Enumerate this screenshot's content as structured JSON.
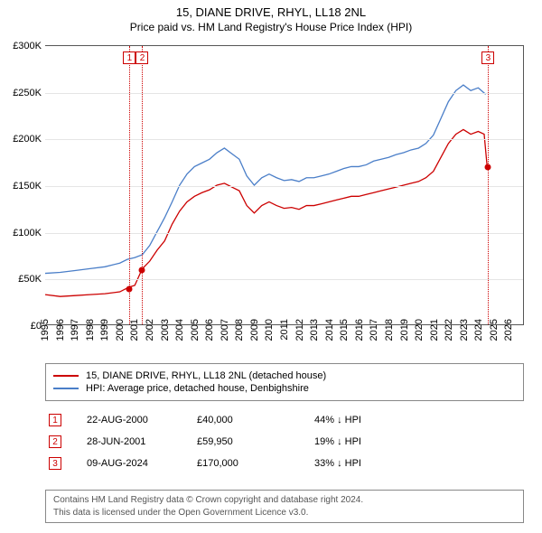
{
  "title": "15, DIANE DRIVE, RHYL, LL18 2NL",
  "subtitle": "Price paid vs. HM Land Registry's House Price Index (HPI)",
  "chart": {
    "type": "line",
    "background_color": "#ffffff",
    "grid_color": "#e5e5e5",
    "axis_color": "#555555",
    "x_min": 1995,
    "x_max": 2027,
    "y_min": 0,
    "y_max": 300000,
    "y_ticks": [
      0,
      50000,
      100000,
      150000,
      200000,
      250000,
      300000
    ],
    "y_tick_labels": [
      "£0",
      "£50K",
      "£100K",
      "£150K",
      "£200K",
      "£250K",
      "£300K"
    ],
    "x_ticks": [
      1995,
      1996,
      1997,
      1998,
      1999,
      2000,
      2001,
      2002,
      2003,
      2004,
      2005,
      2006,
      2007,
      2008,
      2009,
      2010,
      2011,
      2012,
      2013,
      2014,
      2015,
      2016,
      2017,
      2018,
      2019,
      2020,
      2021,
      2022,
      2023,
      2024,
      2025,
      2026
    ],
    "label_fontsize": 11,
    "series": [
      {
        "name": "property",
        "color": "#cc0000",
        "width": 1.3,
        "data": [
          [
            1995,
            32000
          ],
          [
            1996,
            30000
          ],
          [
            1997,
            31000
          ],
          [
            1998,
            32000
          ],
          [
            1999,
            33000
          ],
          [
            2000,
            35000
          ],
          [
            2000.6,
            40000
          ],
          [
            2001.0,
            42000
          ],
          [
            2001.5,
            59950
          ],
          [
            2002,
            68000
          ],
          [
            2002.5,
            80000
          ],
          [
            2003,
            90000
          ],
          [
            2003.5,
            108000
          ],
          [
            2004,
            122000
          ],
          [
            2004.5,
            132000
          ],
          [
            2005,
            138000
          ],
          [
            2005.5,
            142000
          ],
          [
            2006,
            145000
          ],
          [
            2006.5,
            150000
          ],
          [
            2007,
            152000
          ],
          [
            2007.5,
            148000
          ],
          [
            2008,
            144000
          ],
          [
            2008.5,
            128000
          ],
          [
            2009,
            120000
          ],
          [
            2009.5,
            128000
          ],
          [
            2010,
            132000
          ],
          [
            2010.5,
            128000
          ],
          [
            2011,
            125000
          ],
          [
            2011.5,
            126000
          ],
          [
            2012,
            124000
          ],
          [
            2012.5,
            128000
          ],
          [
            2013,
            128000
          ],
          [
            2013.5,
            130000
          ],
          [
            2014,
            132000
          ],
          [
            2014.5,
            134000
          ],
          [
            2015,
            136000
          ],
          [
            2015.5,
            138000
          ],
          [
            2016,
            138000
          ],
          [
            2016.5,
            140000
          ],
          [
            2017,
            142000
          ],
          [
            2017.5,
            144000
          ],
          [
            2018,
            146000
          ],
          [
            2018.5,
            148000
          ],
          [
            2019,
            150000
          ],
          [
            2019.5,
            152000
          ],
          [
            2020,
            154000
          ],
          [
            2020.5,
            158000
          ],
          [
            2021,
            165000
          ],
          [
            2021.5,
            180000
          ],
          [
            2022,
            195000
          ],
          [
            2022.5,
            205000
          ],
          [
            2023,
            210000
          ],
          [
            2023.5,
            205000
          ],
          [
            2024,
            208000
          ],
          [
            2024.4,
            205000
          ],
          [
            2024.6,
            170000
          ]
        ]
      },
      {
        "name": "hpi",
        "color": "#4a7ec8",
        "width": 1.3,
        "data": [
          [
            1995,
            55000
          ],
          [
            1996,
            56000
          ],
          [
            1997,
            58000
          ],
          [
            1998,
            60000
          ],
          [
            1999,
            62000
          ],
          [
            2000,
            66000
          ],
          [
            2000.5,
            70000
          ],
          [
            2001,
            72000
          ],
          [
            2001.5,
            75000
          ],
          [
            2002,
            85000
          ],
          [
            2002.5,
            100000
          ],
          [
            2003,
            115000
          ],
          [
            2003.5,
            132000
          ],
          [
            2004,
            150000
          ],
          [
            2004.5,
            162000
          ],
          [
            2005,
            170000
          ],
          [
            2005.5,
            174000
          ],
          [
            2006,
            178000
          ],
          [
            2006.5,
            185000
          ],
          [
            2007,
            190000
          ],
          [
            2007.5,
            184000
          ],
          [
            2008,
            178000
          ],
          [
            2008.5,
            160000
          ],
          [
            2009,
            150000
          ],
          [
            2009.5,
            158000
          ],
          [
            2010,
            162000
          ],
          [
            2010.5,
            158000
          ],
          [
            2011,
            155000
          ],
          [
            2011.5,
            156000
          ],
          [
            2012,
            154000
          ],
          [
            2012.5,
            158000
          ],
          [
            2013,
            158000
          ],
          [
            2013.5,
            160000
          ],
          [
            2014,
            162000
          ],
          [
            2014.5,
            165000
          ],
          [
            2015,
            168000
          ],
          [
            2015.5,
            170000
          ],
          [
            2016,
            170000
          ],
          [
            2016.5,
            172000
          ],
          [
            2017,
            176000
          ],
          [
            2017.5,
            178000
          ],
          [
            2018,
            180000
          ],
          [
            2018.5,
            183000
          ],
          [
            2019,
            185000
          ],
          [
            2019.5,
            188000
          ],
          [
            2020,
            190000
          ],
          [
            2020.5,
            195000
          ],
          [
            2021,
            204000
          ],
          [
            2021.5,
            222000
          ],
          [
            2022,
            240000
          ],
          [
            2022.5,
            252000
          ],
          [
            2023,
            258000
          ],
          [
            2023.5,
            252000
          ],
          [
            2024,
            255000
          ],
          [
            2024.5,
            248000
          ]
        ]
      }
    ],
    "sale_markers": [
      {
        "n": "1",
        "x": 2000.64,
        "y": 40000
      },
      {
        "n": "2",
        "x": 2001.49,
        "y": 59950
      },
      {
        "n": "3",
        "x": 2024.61,
        "y": 170000
      }
    ]
  },
  "legend": {
    "items": [
      {
        "color": "#cc0000",
        "label": "15, DIANE DRIVE, RHYL, LL18 2NL (detached house)"
      },
      {
        "color": "#4a7ec8",
        "label": "HPI: Average price, detached house, Denbighshire"
      }
    ]
  },
  "sales": [
    {
      "n": "1",
      "date": "22-AUG-2000",
      "price": "£40,000",
      "pct": "44% ↓ HPI"
    },
    {
      "n": "2",
      "date": "28-JUN-2001",
      "price": "£59,950",
      "pct": "19% ↓ HPI"
    },
    {
      "n": "3",
      "date": "09-AUG-2024",
      "price": "£170,000",
      "pct": "33% ↓ HPI"
    }
  ],
  "footer": {
    "line1": "Contains HM Land Registry data © Crown copyright and database right 2024.",
    "line2": "This data is licensed under the Open Government Licence v3.0."
  }
}
